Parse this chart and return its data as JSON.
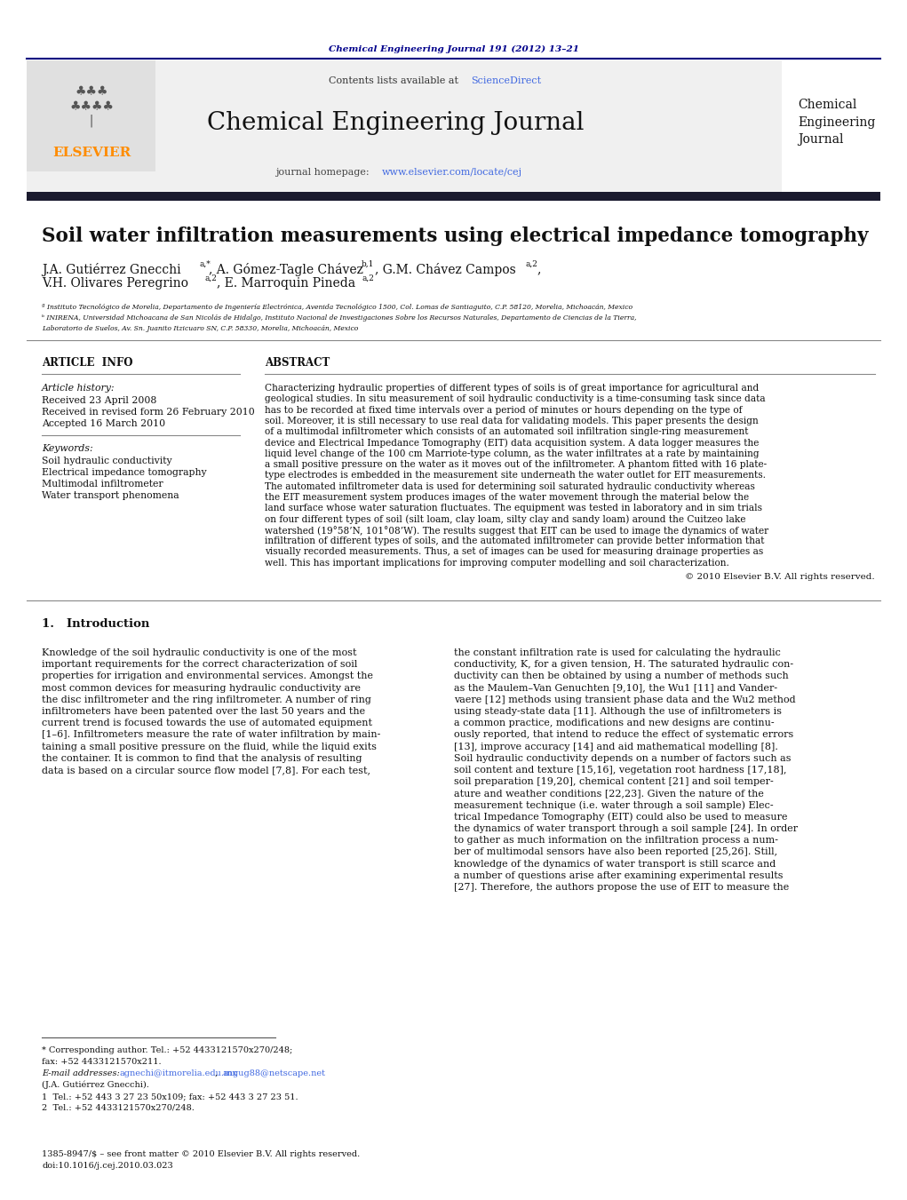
{
  "background_color": "#ffffff",
  "header_citation": "Chemical Engineering Journal 191 (2012) 13–21",
  "header_citation_color": "#00008B",
  "journal_name": "Chemical Engineering Journal",
  "contents_text": "Contents lists available at ",
  "sciencedirect_text": "ScienceDirect",
  "sciencedirect_color": "#4169E1",
  "journal_homepage_text": "journal homepage: ",
  "journal_url": "www.elsevier.com/locate/cej",
  "journal_url_color": "#4169E1",
  "sidebar_journal_name": "Chemical\nEngineering\nJournal",
  "elsevier_color": "#FF8C00",
  "paper_title": "Soil water infiltration measurements using electrical impedance tomography",
  "affil_a": "ª Instituto Tecnológico de Morelia, Departamento de Ingeniería Electrónica, Avenida Tecnológico 1500, Col. Lomas de Santiaguito, C.P. 58120, Morelia, Michoacán, Mexico",
  "affil_b": "ᵇ INIRENA, Universidad Michoacana de San Nicolás de Hidalgo, Instituto Nacional de Investigaciones Sobre los Recursos Naturales, Departamento de Ciencias de la Tierra,",
  "affil_b2": "Laboratorio de Suelos, Av. Sn. Juanito Itzicuaro SN, C.P. 58330, Morelia, Michoacán, Mexico",
  "article_info_header": "ARTICLE  INFO",
  "abstract_header": "ABSTRACT",
  "article_history_label": "Article history:",
  "received1": "Received 23 April 2008",
  "received2": "Received in revised form 26 February 2010",
  "accepted": "Accepted 16 March 2010",
  "keywords_label": "Keywords:",
  "keyword1": "Soil hydraulic conductivity",
  "keyword2": "Electrical impedance tomography",
  "keyword3": "Multimodal infiltrometer",
  "keyword4": "Water transport phenomena",
  "copyright_text": "© 2010 Elsevier B.V. All rights reserved.",
  "section1_header": "1.   Introduction",
  "footnote_corresponding": "* Corresponding author. Tel.: +52 4433121570x270/248;",
  "footnote_fax": "fax: +52 4433121570x211.",
  "footnote_email_label": "E-mail addresses:",
  "footnote_email1": "agnechi@itmorelia.edu.mx",
  "footnote_email2": "angug88@netscape.net",
  "footnote_name": "(J.A. Gutiérrez Gnecchi).",
  "footnote_1": "1  Tel.: +52 443 3 27 23 50x109; fax: +52 443 3 27 23 51.",
  "footnote_2": "2  Tel.: +52 4433121570x270/248.",
  "issn_text": "1385-8947/$ – see front matter © 2010 Elsevier B.V. All rights reserved.",
  "doi_text": "doi:10.1016/j.cej.2010.03.023",
  "header_bg_color": "#f0f0f0",
  "dark_bar_color": "#1a1a2e",
  "border_color": "#000080"
}
